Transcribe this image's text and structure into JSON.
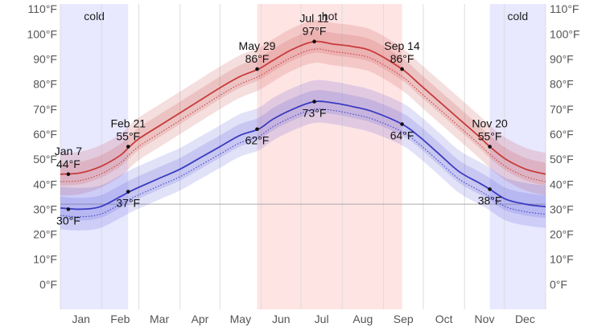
{
  "chart_data": {
    "type": "area",
    "x_tick_labels": [
      "Jan",
      "Feb",
      "Mar",
      "Apr",
      "May",
      "Jun",
      "Jul",
      "Aug",
      "Sep",
      "Oct",
      "Nov",
      "Dec"
    ],
    "y_tick_labels": [
      "0°F",
      "10°F",
      "20°F",
      "30°F",
      "40°F",
      "50°F",
      "60°F",
      "70°F",
      "80°F",
      "90°F",
      "100°F",
      "110°F"
    ],
    "ylim": [
      -10,
      112
    ],
    "xlim": [
      0,
      365
    ],
    "grid": true,
    "seasons": [
      {
        "label": "cold",
        "start_day": 0,
        "end_day": 51
      },
      {
        "label": "hot",
        "start_day": 148,
        "end_day": 257
      },
      {
        "label": "cold",
        "start_day": 323,
        "end_day": 365
      }
    ],
    "series": [
      {
        "key": "high",
        "color": "#c83a3a",
        "x": [
          0,
          15,
          30,
          45,
          52,
          60,
          75,
          90,
          105,
          120,
          135,
          149,
          160,
          175,
          191,
          205,
          220,
          235,
          257,
          270,
          285,
          300,
          315,
          323,
          335,
          350,
          365
        ],
        "values": [
          44,
          44.5,
          47,
          51.5,
          55,
          58.5,
          63.5,
          68.5,
          73.5,
          78.5,
          83,
          86,
          89.5,
          94,
          97,
          96,
          95,
          93,
          86,
          80,
          73,
          66,
          59,
          55,
          50,
          46,
          44
        ],
        "inner_band": 4.5,
        "outer_band": 8.5,
        "normal_offset": -3
      },
      {
        "key": "low",
        "color": "#3b3bc0",
        "x": [
          0,
          15,
          30,
          45,
          52,
          60,
          75,
          90,
          105,
          120,
          135,
          149,
          160,
          175,
          191,
          205,
          220,
          235,
          257,
          270,
          285,
          300,
          315,
          323,
          335,
          350,
          365
        ],
        "values": [
          30.5,
          30,
          31,
          35,
          37,
          39,
          42.5,
          46,
          50.5,
          55,
          59.5,
          62,
          66,
          70,
          73,
          72.5,
          71,
          69,
          64,
          59,
          52,
          45,
          40.5,
          38,
          34,
          32,
          31
        ],
        "inner_band": 4.5,
        "outer_band": 8.5,
        "normal_offset": -3
      }
    ],
    "annotations": [
      {
        "label_1": "Jan 7",
        "label_2": "44°F",
        "day": 6,
        "value": 44,
        "series": "high",
        "pos": "above"
      },
      {
        "label_1": "Feb 21",
        "label_2": "55°F",
        "day": 51,
        "value": 55,
        "series": "high",
        "pos": "above"
      },
      {
        "label_1": "May 29",
        "label_2": "86°F",
        "day": 148,
        "value": 86,
        "series": "high",
        "pos": "above"
      },
      {
        "label_1": "Jul 11",
        "label_2": "97°F",
        "day": 191,
        "value": 97,
        "series": "high",
        "pos": "above"
      },
      {
        "label_1": "Sep 14",
        "label_2": "86°F",
        "day": 257,
        "value": 86,
        "series": "high",
        "pos": "above"
      },
      {
        "label_1": "Nov 20",
        "label_2": "55°F",
        "day": 323,
        "value": 55,
        "series": "high",
        "pos": "above"
      },
      {
        "label_1": "30°F",
        "day": 6,
        "value": 30,
        "series": "low",
        "pos": "below"
      },
      {
        "label_1": "37°F",
        "day": 51,
        "value": 37,
        "series": "low",
        "pos": "below"
      },
      {
        "label_1": "62°F",
        "day": 148,
        "value": 62,
        "series": "low",
        "pos": "below"
      },
      {
        "label_1": "73°F",
        "day": 191,
        "value": 73,
        "series": "low",
        "pos": "below"
      },
      {
        "label_1": "64°F",
        "day": 257,
        "value": 64,
        "series": "low",
        "pos": "below"
      },
      {
        "label_1": "38°F",
        "day": 323,
        "value": 38,
        "series": "low",
        "pos": "below"
      }
    ],
    "freezing_line": 32,
    "colors": {
      "cold_band": "#e8e8ff",
      "hot_band": "#ffe4e4",
      "grid": "#dddddd"
    }
  }
}
